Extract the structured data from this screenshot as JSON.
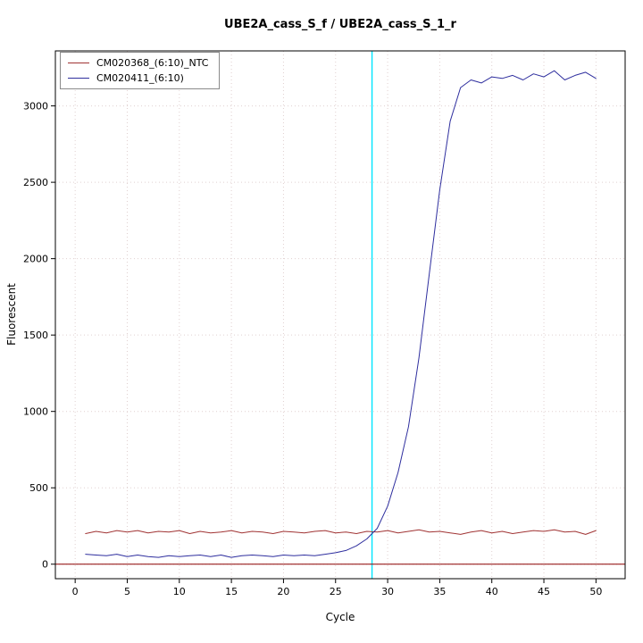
{
  "chart_data": {
    "type": "line",
    "title": "UBE2A_cass_S_f / UBE2A_cass_S_1_r",
    "xlabel": "Cycle",
    "ylabel": "Fluorescent",
    "xlim": [
      -1.9,
      52.8
    ],
    "ylim": [
      -95,
      3360
    ],
    "xticks": [
      0,
      5,
      10,
      15,
      20,
      25,
      30,
      35,
      40,
      45,
      50
    ],
    "yticks": [
      0,
      500,
      1000,
      1500,
      2000,
      2500,
      3000
    ],
    "grid": true,
    "legend_position": "top-left",
    "threshold_cycle": 28.5,
    "baseline": 0,
    "colors": {
      "ntc": "#a03333",
      "sample": "#2e2e9e",
      "threshold": "#00e5ff",
      "baseline": "#8b0000",
      "grid": "#e0d0d0",
      "box": "#000000"
    },
    "x": [
      1,
      2,
      3,
      4,
      5,
      6,
      7,
      8,
      9,
      10,
      11,
      12,
      13,
      14,
      15,
      16,
      17,
      18,
      19,
      20,
      21,
      22,
      23,
      24,
      25,
      26,
      27,
      28,
      29,
      30,
      31,
      32,
      33,
      34,
      35,
      36,
      37,
      38,
      39,
      40,
      41,
      42,
      43,
      44,
      45,
      46,
      47,
      48,
      49,
      50
    ],
    "series": [
      {
        "name": "CM020368_(6:10)_NTC",
        "color": "#a03333",
        "values": [
          200,
          215,
          205,
          220,
          210,
          220,
          205,
          215,
          210,
          220,
          200,
          215,
          205,
          210,
          220,
          205,
          215,
          210,
          200,
          215,
          210,
          205,
          215,
          220,
          205,
          210,
          200,
          215,
          210,
          220,
          205,
          215,
          225,
          210,
          215,
          205,
          195,
          210,
          220,
          205,
          215,
          200,
          210,
          220,
          215,
          225,
          210,
          215,
          195,
          220
        ]
      },
      {
        "name": "CM020411_(6:10)",
        "color": "#2e2e9e",
        "values": [
          65,
          60,
          55,
          65,
          50,
          60,
          50,
          45,
          55,
          50,
          55,
          60,
          50,
          60,
          45,
          55,
          60,
          55,
          50,
          60,
          55,
          60,
          55,
          65,
          75,
          90,
          120,
          165,
          235,
          380,
          600,
          900,
          1350,
          1900,
          2450,
          2900,
          3120,
          3170,
          3150,
          3190,
          3180,
          3200,
          3170,
          3210,
          3190,
          3230,
          3170,
          3200,
          3220,
          3180
        ]
      }
    ]
  }
}
